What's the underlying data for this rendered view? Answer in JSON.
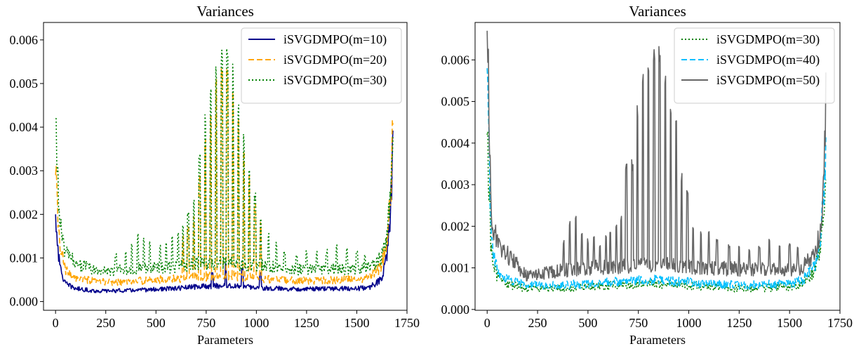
{
  "chart_data": [
    {
      "type": "line",
      "title": "Variances",
      "xlabel": "Parameters",
      "ylabel": "",
      "xlim": [
        -60,
        1750
      ],
      "ylim": [
        -0.0002,
        0.0064
      ],
      "xticks": [
        0,
        250,
        500,
        750,
        1000,
        1250,
        1500,
        1750
      ],
      "xtick_labels": [
        "0",
        "250",
        "500",
        "750",
        "1000",
        "1250",
        "1500",
        "1750"
      ],
      "yticks": [
        0.0,
        0.001,
        0.002,
        0.003,
        0.004,
        0.005,
        0.006
      ],
      "ytick_labels": [
        "0.000",
        "0.001",
        "0.002",
        "0.003",
        "0.004",
        "0.005",
        "0.006"
      ],
      "grid": false,
      "legend_position": "top-right",
      "series": [
        {
          "name": "iSVGDMPO(m=10)",
          "color": "#00008b",
          "style": "solid",
          "x": [
            0,
            20,
            50,
            100,
            200,
            300,
            400,
            500,
            600,
            700,
            800,
            850,
            900,
            1000,
            1100,
            1200,
            1300,
            1400,
            1500,
            1560,
            1620,
            1650,
            1670,
            1680
          ],
          "baseline": [
            0.002,
            0.0008,
            0.0004,
            0.0003,
            0.00024,
            0.00025,
            0.00026,
            0.00028,
            0.0003,
            0.00034,
            0.00036,
            0.00036,
            0.00035,
            0.00032,
            0.0003,
            0.00029,
            0.00029,
            0.0003,
            0.0003,
            0.00032,
            0.0005,
            0.001,
            0.0022,
            0.0038
          ],
          "spikes": [
            [
              848,
              0.0009
            ],
            [
              780,
              0.0007
            ],
            [
              930,
              0.0008
            ],
            [
              1020,
              0.0007
            ]
          ]
        },
        {
          "name": "iSVGDMPO(m=20)",
          "color": "#ffa500",
          "style": "dashed",
          "x": [
            0,
            20,
            50,
            100,
            200,
            300,
            400,
            500,
            600,
            700,
            800,
            850,
            900,
            1000,
            1100,
            1200,
            1300,
            1400,
            1500,
            1560,
            1620,
            1650,
            1670,
            1680
          ],
          "baseline": [
            0.0029,
            0.0013,
            0.0007,
            0.00055,
            0.00045,
            0.00045,
            0.00047,
            0.0005,
            0.00052,
            0.00056,
            0.00058,
            0.00058,
            0.00057,
            0.00054,
            0.0005,
            0.00048,
            0.00048,
            0.0005,
            0.00052,
            0.00055,
            0.0008,
            0.0013,
            0.0025,
            0.004
          ],
          "spikes": [
            [
              635,
              0.0015
            ],
            [
              660,
              0.0018
            ],
            [
              688,
              0.0021
            ],
            [
              717,
              0.003
            ],
            [
              745,
              0.0038
            ],
            [
              772,
              0.0046
            ],
            [
              800,
              0.0052
            ],
            [
              828,
              0.0056
            ],
            [
              855,
              0.0055
            ],
            [
              883,
              0.0049
            ],
            [
              910,
              0.0042
            ],
            [
              937,
              0.0035
            ],
            [
              965,
              0.0029
            ],
            [
              993,
              0.0023
            ],
            [
              1021,
              0.0019
            ]
          ]
        },
        {
          "name": "iSVGDMPO(m=30)",
          "color": "#008000",
          "style": "dotted",
          "x": [
            0,
            20,
            50,
            100,
            200,
            300,
            400,
            500,
            600,
            700,
            800,
            850,
            900,
            1000,
            1100,
            1200,
            1300,
            1400,
            1500,
            1560,
            1620,
            1650,
            1670,
            1680
          ],
          "baseline": [
            0.0042,
            0.0018,
            0.0011,
            0.0009,
            0.0007,
            0.00072,
            0.00075,
            0.00078,
            0.0008,
            0.00085,
            0.00088,
            0.00088,
            0.00086,
            0.00082,
            0.00078,
            0.00074,
            0.00072,
            0.00075,
            0.00075,
            0.00078,
            0.001,
            0.0015,
            0.0027,
            0.0038
          ],
          "spikes": [
            [
              300,
              0.0011
            ],
            [
              350,
              0.0012
            ],
            [
              380,
              0.0014
            ],
            [
              410,
              0.0016
            ],
            [
              440,
              0.0015
            ],
            [
              470,
              0.0014
            ],
            [
              520,
              0.0013
            ],
            [
              550,
              0.0014
            ],
            [
              580,
              0.0015
            ],
            [
              610,
              0.0016
            ],
            [
              635,
              0.0018
            ],
            [
              660,
              0.0021
            ],
            [
              688,
              0.0025
            ],
            [
              717,
              0.0034
            ],
            [
              745,
              0.0043
            ],
            [
              772,
              0.005
            ],
            [
              800,
              0.0056
            ],
            [
              828,
              0.0058
            ],
            [
              855,
              0.0061
            ],
            [
              883,
              0.0055
            ],
            [
              910,
              0.0047
            ],
            [
              937,
              0.0039
            ],
            [
              965,
              0.0032
            ],
            [
              993,
              0.0025
            ],
            [
              1021,
              0.002
            ],
            [
              1060,
              0.0016
            ],
            [
              1100,
              0.0014
            ],
            [
              1140,
              0.0012
            ],
            [
              1200,
              0.0011
            ],
            [
              1250,
              0.0012
            ],
            [
              1300,
              0.0012
            ],
            [
              1350,
              0.0012
            ],
            [
              1400,
              0.0013
            ],
            [
              1450,
              0.0013
            ],
            [
              1500,
              0.0012
            ],
            [
              1540,
              0.0011
            ]
          ]
        }
      ]
    },
    {
      "type": "line",
      "title": "Variances",
      "xlabel": "Parameters",
      "ylabel": "",
      "xlim": [
        -60,
        1750
      ],
      "ylim": [
        -2e-05,
        0.0069
      ],
      "xticks": [
        0,
        250,
        500,
        750,
        1000,
        1250,
        1500,
        1750
      ],
      "xtick_labels": [
        "0",
        "250",
        "500",
        "750",
        "1000",
        "1250",
        "1500",
        "1750"
      ],
      "yticks": [
        0.0,
        0.001,
        0.002,
        0.003,
        0.004,
        0.005,
        0.006
      ],
      "ytick_labels": [
        "0.000",
        "0.001",
        "0.002",
        "0.003",
        "0.004",
        "0.005",
        "0.006"
      ],
      "grid": false,
      "legend_position": "top-right",
      "series": [
        {
          "name": "iSVGDMPO(m=30)",
          "color": "#008000",
          "style": "dotted",
          "x": [
            0,
            20,
            50,
            100,
            200,
            300,
            400,
            500,
            600,
            700,
            800,
            850,
            900,
            1000,
            1100,
            1200,
            1300,
            1400,
            1500,
            1560,
            1620,
            1650,
            1670,
            1680
          ],
          "baseline": [
            0.0042,
            0.0014,
            0.0008,
            0.0006,
            0.0005,
            0.0005,
            0.00052,
            0.00055,
            0.00058,
            0.0006,
            0.00062,
            0.00062,
            0.0006,
            0.00058,
            0.00055,
            0.00052,
            0.0005,
            0.00052,
            0.00055,
            0.0006,
            0.0009,
            0.0014,
            0.0026,
            0.0037
          ],
          "spikes": []
        },
        {
          "name": "iSVGDMPO(m=40)",
          "color": "#00bfff",
          "style": "dashed",
          "x": [
            0,
            20,
            50,
            100,
            200,
            300,
            400,
            500,
            600,
            700,
            800,
            850,
            900,
            1000,
            1100,
            1200,
            1300,
            1400,
            1500,
            1560,
            1620,
            1650,
            1670,
            1680
          ],
          "baseline": [
            0.0058,
            0.0016,
            0.0009,
            0.0007,
            0.00058,
            0.00058,
            0.0006,
            0.00062,
            0.00065,
            0.00068,
            0.0007,
            0.0007,
            0.00068,
            0.00065,
            0.00062,
            0.0006,
            0.00058,
            0.0006,
            0.00062,
            0.00068,
            0.001,
            0.0015,
            0.0027,
            0.0038
          ],
          "spikes": []
        },
        {
          "name": "iSVGDMPO(m=50)",
          "color": "#666666",
          "style": "solid",
          "x": [
            0,
            20,
            50,
            100,
            200,
            300,
            400,
            500,
            600,
            700,
            800,
            850,
            900,
            1000,
            1100,
            1200,
            1300,
            1400,
            1500,
            1560,
            1620,
            1650,
            1670,
            1680
          ],
          "baseline": [
            0.0067,
            0.0022,
            0.0016,
            0.0013,
            0.0008,
            0.0009,
            0.00095,
            0.001,
            0.00102,
            0.00105,
            0.00108,
            0.00108,
            0.00106,
            0.00104,
            0.001,
            0.00098,
            0.00096,
            0.00098,
            0.00095,
            0.001,
            0.0013,
            0.0019,
            0.0032,
            0.0052
          ],
          "spikes": [
            [
              380,
              0.0017
            ],
            [
              410,
              0.0022
            ],
            [
              440,
              0.0023
            ],
            [
              470,
              0.0019
            ],
            [
              500,
              0.0017
            ],
            [
              530,
              0.0018
            ],
            [
              560,
              0.0016
            ],
            [
              590,
              0.0018
            ],
            [
              610,
              0.0019
            ],
            [
              640,
              0.0021
            ],
            [
              665,
              0.0023
            ],
            [
              690,
              0.0035
            ],
            [
              720,
              0.0036
            ],
            [
              745,
              0.005
            ],
            [
              772,
              0.0059
            ],
            [
              800,
              0.0061
            ],
            [
              828,
              0.0065
            ],
            [
              855,
              0.0064
            ],
            [
              883,
              0.0059
            ],
            [
              910,
              0.0049
            ],
            [
              937,
              0.0047
            ],
            [
              965,
              0.0033
            ],
            [
              993,
              0.0029
            ],
            [
              1021,
              0.0021
            ],
            [
              1060,
              0.0019
            ],
            [
              1100,
              0.0019
            ],
            [
              1140,
              0.0017
            ],
            [
              1200,
              0.0016
            ],
            [
              1250,
              0.0016
            ],
            [
              1300,
              0.0015
            ],
            [
              1350,
              0.0016
            ],
            [
              1400,
              0.0017
            ],
            [
              1450,
              0.0016
            ],
            [
              1500,
              0.0016
            ],
            [
              1540,
              0.0015
            ]
          ]
        }
      ]
    }
  ]
}
